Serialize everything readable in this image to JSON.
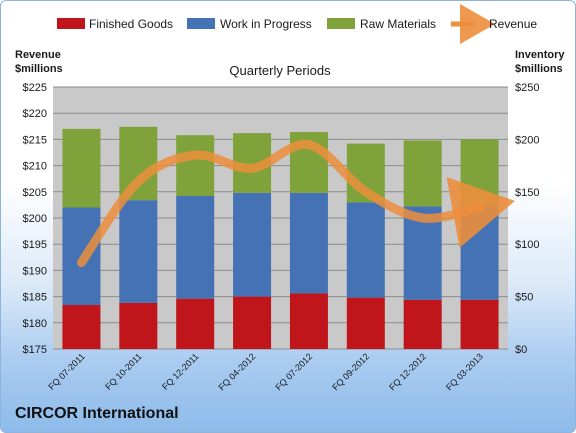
{
  "company": "CIRCOR International",
  "chart_data": {
    "type": "bar",
    "stacked": true,
    "title": "Quarterly Periods",
    "categories": [
      "FQ 07-2011",
      "FQ 10-2011",
      "FQ 12-2011",
      "FQ 04-2012",
      "FQ 07-2012",
      "FQ 09-2012",
      "FQ 12-2012",
      "FQ 03-2013"
    ],
    "left_axis": {
      "title_line1": "Revenue",
      "title_line2": "$millions",
      "ylim": [
        175,
        225
      ],
      "ticks": [
        "$175",
        "$180",
        "$185",
        "$190",
        "$195",
        "$200",
        "$205",
        "$210",
        "$215",
        "$220",
        "$225"
      ]
    },
    "right_axis": {
      "title_line1": "Inventory",
      "title_line2": "$millions",
      "ylim": [
        0,
        250
      ],
      "ticks": [
        "$0",
        "$50",
        "$100",
        "$150",
        "$200",
        "$250"
      ]
    },
    "series": [
      {
        "name": "Finished Goods",
        "color": "#c0151b",
        "values": [
          42,
          44,
          48,
          50,
          53,
          49,
          47,
          47
        ]
      },
      {
        "name": "Work in Progress",
        "color": "#4472b4",
        "values": [
          93,
          98,
          98,
          99,
          96,
          91,
          89,
          90
        ]
      },
      {
        "name": "Raw Materials",
        "color": "#7fa33a",
        "values": [
          75,
          70,
          58,
          57,
          58,
          56,
          63,
          63
        ]
      }
    ],
    "line_series": {
      "name": "Revenue",
      "axis": "left",
      "color": "#ec8e3c",
      "values": [
        191.5,
        207,
        212,
        209.5,
        214,
        205,
        200,
        202
      ]
    },
    "grid": true,
    "legend_position": "top"
  }
}
